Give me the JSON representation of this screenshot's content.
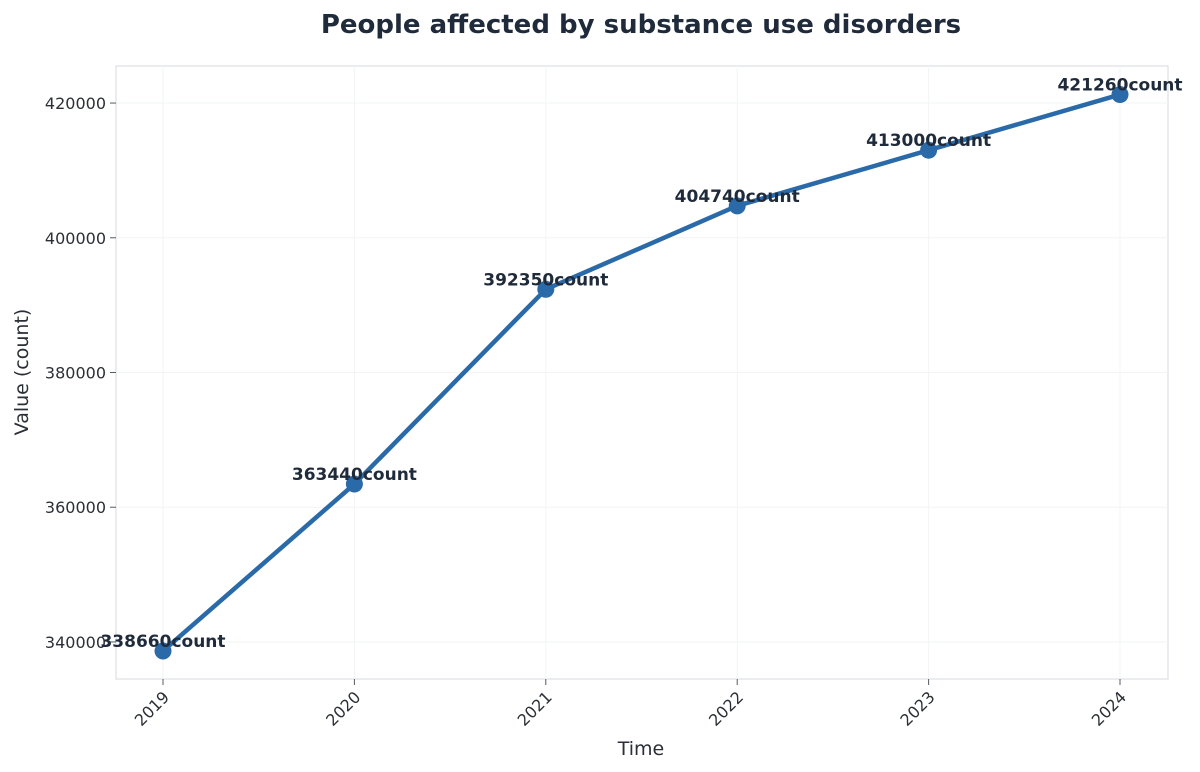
{
  "chart_data": {
    "type": "line",
    "title": "People affected by substance use disorders",
    "xlabel": "Time",
    "ylabel": "Value (count)",
    "x": [
      "2019",
      "2020",
      "2021",
      "2022",
      "2023",
      "2024"
    ],
    "series": [
      {
        "values": [
          338660,
          363440,
          392350,
          404740,
          413000,
          421260
        ],
        "labels": [
          "338660count",
          "363440count",
          "392350count",
          "404740count",
          "413000count",
          "421260count"
        ],
        "color": "#2b6aa8"
      }
    ],
    "y_ticks": [
      "340000",
      "360000",
      "380000",
      "400000",
      "420000"
    ],
    "ylim": [
      334500,
      425500
    ],
    "grid": true,
    "x_tick_rotation": "45deg"
  }
}
